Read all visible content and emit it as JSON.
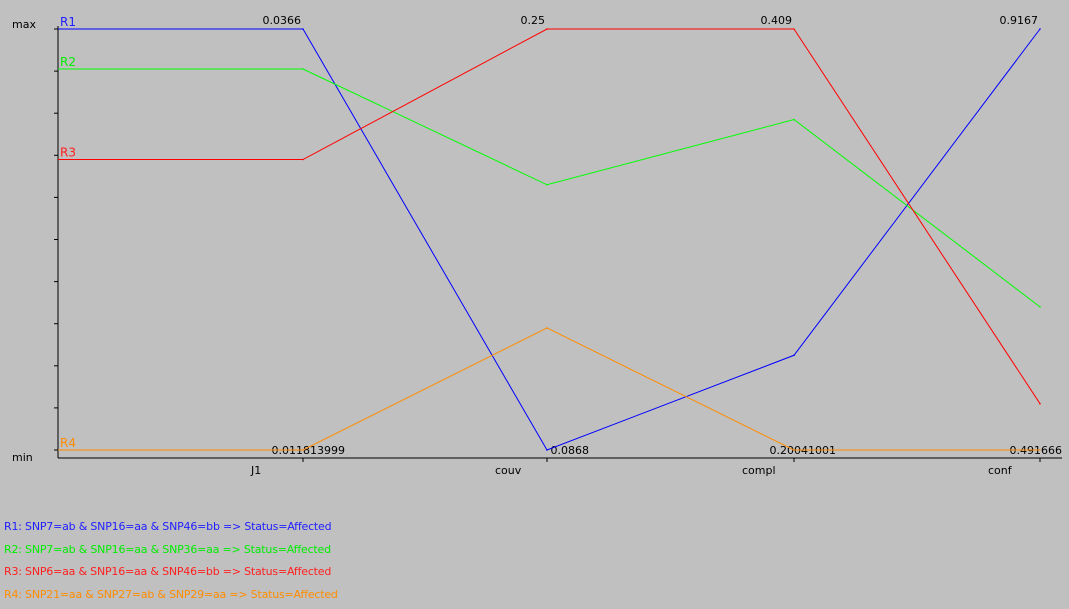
{
  "chart_data": {
    "type": "line",
    "title": "",
    "xlabel": "",
    "ylabel": "",
    "y_axis_labels": {
      "max": "max",
      "min": "min"
    },
    "categories": [
      "J1",
      "couv",
      "compl",
      "conf"
    ],
    "axis_max_labels": [
      "0.0366",
      "0.25",
      "0.409",
      "0.9167"
    ],
    "axis_min_labels": [
      "0.011813999",
      "0.0868",
      "0.20041001",
      "0.491666"
    ],
    "normalized_range": [
      0,
      1
    ],
    "grid": false,
    "series": [
      {
        "name": "R1",
        "color": "#0000ff",
        "label_color": "#2020ff",
        "values": [
          1.0,
          0.0,
          0.225,
          1.0
        ]
      },
      {
        "name": "R2",
        "color": "#00ff00",
        "label_color": "#00ee00",
        "values": [
          0.905,
          0.63,
          0.785,
          0.34
        ]
      },
      {
        "name": "R3",
        "color": "#ff0000",
        "label_color": "#ff2020",
        "values": [
          0.69,
          1.0,
          1.0,
          0.11
        ]
      },
      {
        "name": "R4",
        "color": "#ff8c00",
        "label_color": "#ff8c00",
        "values": [
          0.0,
          0.29,
          0.0,
          0.0
        ]
      }
    ],
    "legend_position": "bottom-left",
    "legend": [
      {
        "text": "R1: SNP7=ab & SNP16=aa & SNP46=bb => Status=Affected",
        "color": "#2020ff"
      },
      {
        "text": "R2: SNP7=ab & SNP16=aa & SNP36=aa => Status=Affected",
        "color": "#00ee00"
      },
      {
        "text": "R3: SNP6=aa & SNP16=aa & SNP46=bb => Status=Affected",
        "color": "#ff2020"
      },
      {
        "text": "R4: SNP21=aa & SNP27=ab & SNP29=aa => Status=Affected",
        "color": "#ff8c00"
      }
    ]
  }
}
